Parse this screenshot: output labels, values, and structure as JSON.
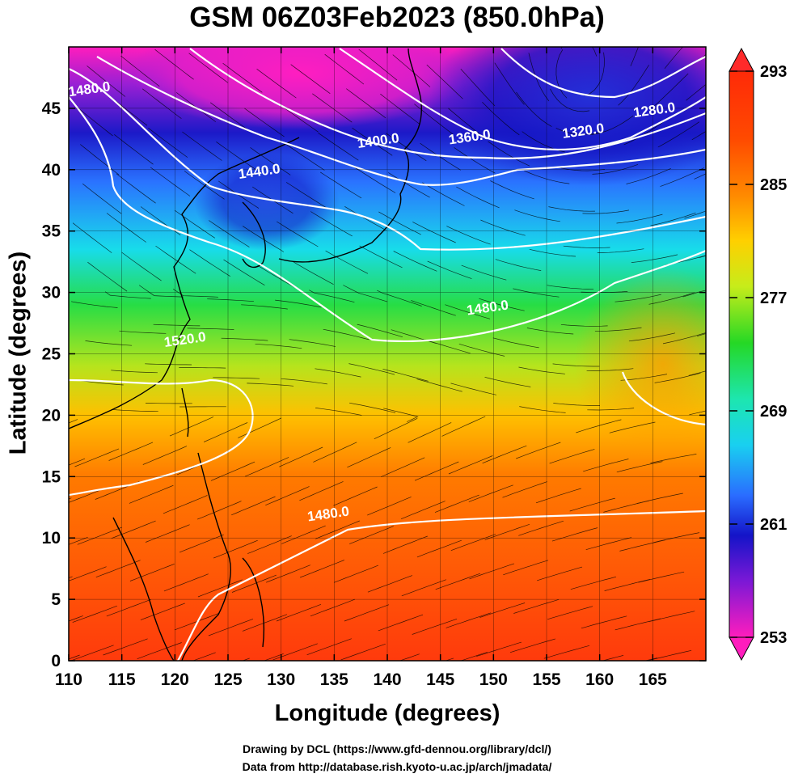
{
  "title": "GSM 06Z03Feb2023 (850.0hPa)",
  "x_axis": {
    "label": "Longitude (degrees)",
    "range": [
      110,
      170
    ],
    "ticks": [
      110,
      115,
      120,
      125,
      130,
      135,
      140,
      145,
      150,
      155,
      160,
      165
    ]
  },
  "y_axis": {
    "label": "Latitude  (degrees)",
    "range": [
      0,
      50
    ],
    "ticks": [
      0,
      5,
      10,
      15,
      20,
      25,
      30,
      35,
      40,
      45
    ]
  },
  "colorbar": {
    "unit_hint": "temperature (K)",
    "range": [
      253,
      293
    ],
    "tick_labels": [
      "293",
      "285",
      "277",
      "269",
      "261",
      "253"
    ],
    "colors": [
      "#ff1dbd",
      "#7a18d6",
      "#1414c8",
      "#2266ff",
      "#19d9e9",
      "#1ce06a",
      "#36d11e",
      "#d6e81b",
      "#ffb000",
      "#ff6a00",
      "#ff2a08"
    ]
  },
  "contour_labels": [
    {
      "text": "1480.0",
      "lon": 112.0,
      "lat": 46.2
    },
    {
      "text": "1440.0",
      "lon": 128.0,
      "lat": 39.5
    },
    {
      "text": "1400.0",
      "lon": 139.2,
      "lat": 42.0
    },
    {
      "text": "1360.0",
      "lon": 147.8,
      "lat": 42.3
    },
    {
      "text": "1320.0",
      "lon": 158.5,
      "lat": 42.8
    },
    {
      "text": "1280.0",
      "lon": 165.2,
      "lat": 44.5
    },
    {
      "text": "1480.0",
      "lon": 149.5,
      "lat": 28.4
    },
    {
      "text": "1520.0",
      "lon": 121.0,
      "lat": 25.8
    },
    {
      "text": "1480.0",
      "lon": 134.5,
      "lat": 11.6
    }
  ],
  "credits": [
    "Drawing by DCL (https://www.gfd-dennou.org/library/dcl/)",
    "Data from http://database.rish.kyoto-u.ac.jp/arch/jmadata/"
  ]
}
